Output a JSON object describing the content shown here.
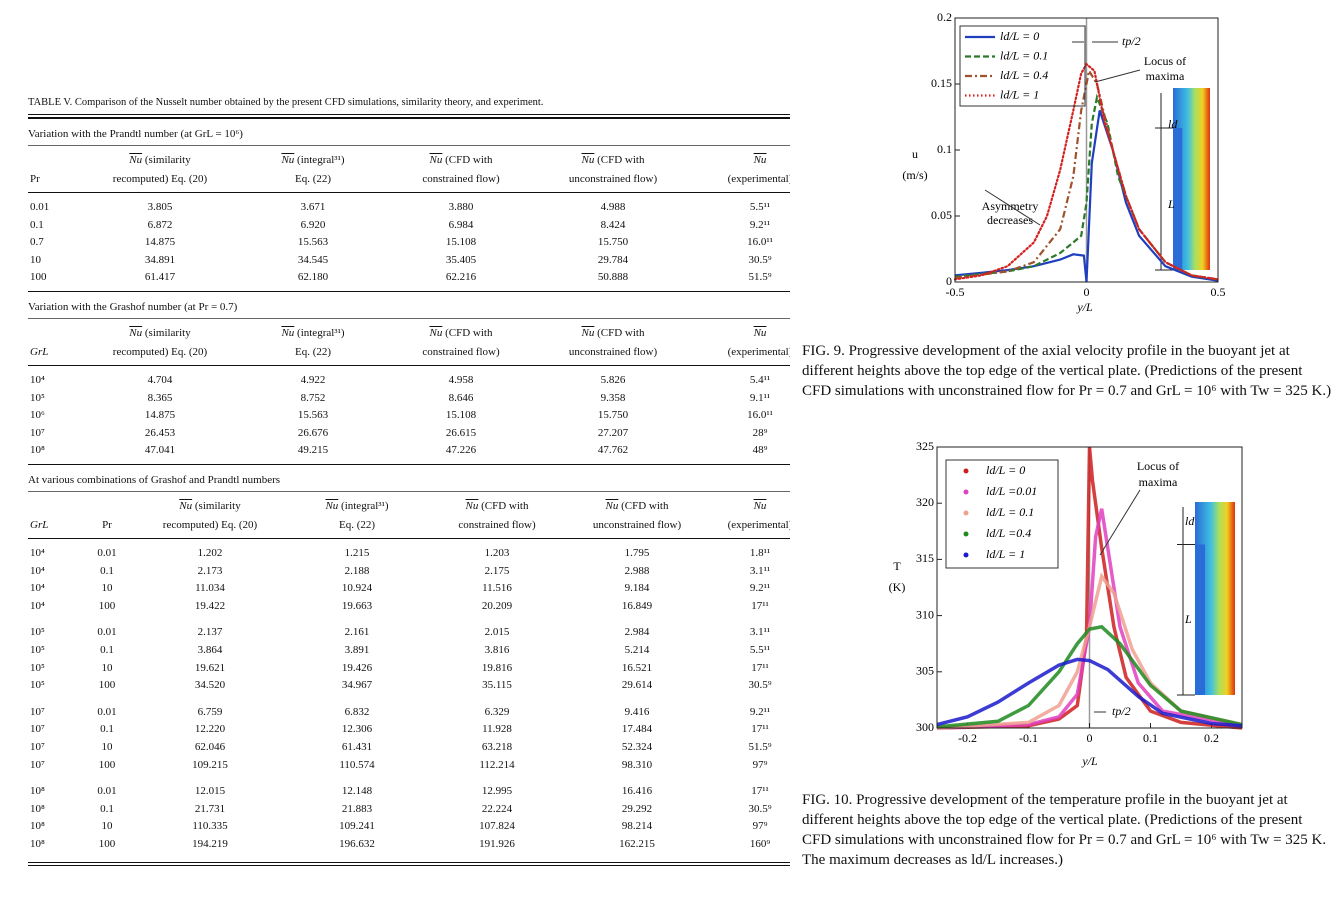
{
  "table": {
    "title": "TABLE V.  Comparison of the Nusselt number obtained by the present CFD simulations, similarity theory, and experiment.",
    "sections": [
      {
        "heading": "Variation with the Prandtl number (at GrL = 10⁶)",
        "columns": [
          {
            "line2": "Pr"
          },
          {
            "symbol": "Nu",
            "line1": " (similarity",
            "line2": "recomputed) Eq. (20)"
          },
          {
            "symbol": "Nu",
            "line1": " (integral³¹)",
            "line2": "Eq. (22)"
          },
          {
            "symbol": "Nu",
            "line1": " (CFD with",
            "line2": "constrained flow)"
          },
          {
            "symbol": "Nu",
            "line1": " (CFD with",
            "line2": "unconstrained flow)"
          },
          {
            "symbol": "Nu",
            "line2": "(experimental)"
          }
        ],
        "rows": [
          [
            "0.01",
            "3.805",
            "3.671",
            "3.880",
            "4.988",
            "5.5¹¹"
          ],
          [
            "0.1",
            "6.872",
            "6.920",
            "6.984",
            "8.424",
            "9.2¹¹"
          ],
          [
            "0.7",
            "14.875",
            "15.563",
            "15.108",
            "15.750",
            "16.0¹¹"
          ],
          [
            "10",
            "34.891",
            "34.545",
            "35.405",
            "29.784",
            "30.5⁹"
          ],
          [
            "100",
            "61.417",
            "62.180",
            "62.216",
            "50.888",
            "51.5⁹"
          ]
        ]
      },
      {
        "heading": "Variation with the Grashof number (at Pr = 0.7)",
        "columns": [
          {
            "line2": "GrL"
          },
          {
            "symbol": "Nu",
            "line1": " (similarity",
            "line2": "recomputed) Eq. (20)"
          },
          {
            "symbol": "Nu",
            "line1": " (integral³¹)",
            "line2": "Eq. (22)"
          },
          {
            "symbol": "Nu",
            "line1": " (CFD with",
            "line2": "constrained flow)"
          },
          {
            "symbol": "Nu",
            "line1": " (CFD with",
            "line2": "unconstrained flow)"
          },
          {
            "symbol": "Nu",
            "line2": "(experimental)"
          }
        ],
        "rows": [
          [
            "10⁴",
            "4.704",
            "4.922",
            "4.958",
            "5.826",
            "5.4¹¹"
          ],
          [
            "10⁵",
            "8.365",
            "8.752",
            "8.646",
            "9.358",
            "9.1¹¹"
          ],
          [
            "10⁶",
            "14.875",
            "15.563",
            "15.108",
            "15.750",
            "16.0¹¹"
          ],
          [
            "10⁷",
            "26.453",
            "26.676",
            "26.615",
            "27.207",
            "28⁹"
          ],
          [
            "10⁸",
            "47.041",
            "49.215",
            "47.226",
            "47.762",
            "48⁹"
          ]
        ]
      },
      {
        "heading": "At various combinations of Grashof and Prandtl numbers",
        "columns": [
          {
            "line2": "GrL"
          },
          {
            "line2": "Pr"
          },
          {
            "symbol": "Nu",
            "line1": " (similarity",
            "line2": "recomputed) Eq. (20)"
          },
          {
            "symbol": "Nu",
            "line1": " (integral³¹)",
            "line2": "Eq. (22)"
          },
          {
            "symbol": "Nu",
            "line1": " (CFD with",
            "line2": "constrained flow)"
          },
          {
            "symbol": "Nu",
            "line1": " (CFD with",
            "line2": "unconstrained flow)"
          },
          {
            "symbol": "Nu",
            "line2": "(experimental)"
          }
        ],
        "rows": [
          [
            "10⁴",
            "0.01",
            "1.202",
            "1.215",
            "1.203",
            "1.795",
            "1.8¹¹"
          ],
          [
            "10⁴",
            "0.1",
            "2.173",
            "2.188",
            "2.175",
            "2.988",
            "3.1¹¹"
          ],
          [
            "10⁴",
            "10",
            "11.034",
            "10.924",
            "11.516",
            "9.184",
            "9.2¹¹"
          ],
          [
            "10⁴",
            "100",
            "19.422",
            "19.663",
            "20.209",
            "16.849",
            "17¹¹"
          ],
          [
            "10⁵",
            "0.01",
            "2.137",
            "2.161",
            "2.015",
            "2.984",
            "3.1¹¹"
          ],
          [
            "10⁵",
            "0.1",
            "3.864",
            "3.891",
            "3.816",
            "5.214",
            "5.5¹¹"
          ],
          [
            "10⁵",
            "10",
            "19.621",
            "19.426",
            "19.816",
            "16.521",
            "17¹¹"
          ],
          [
            "10⁵",
            "100",
            "34.520",
            "34.967",
            "35.115",
            "29.614",
            "30.5⁹"
          ],
          [
            "10⁷",
            "0.01",
            "6.759",
            "6.832",
            "6.329",
            "9.416",
            "9.2¹¹"
          ],
          [
            "10⁷",
            "0.1",
            "12.220",
            "12.306",
            "11.928",
            "17.484",
            "17¹¹"
          ],
          [
            "10⁷",
            "10",
            "62.046",
            "61.431",
            "63.218",
            "52.324",
            "51.5⁹"
          ],
          [
            "10⁷",
            "100",
            "109.215",
            "110.574",
            "112.214",
            "98.310",
            "97⁹"
          ],
          [
            "10⁸",
            "0.01",
            "12.015",
            "12.148",
            "12.995",
            "16.416",
            "17¹¹"
          ],
          [
            "10⁸",
            "0.1",
            "21.731",
            "21.883",
            "22.224",
            "29.292",
            "30.5⁹"
          ],
          [
            "10⁸",
            "10",
            "110.335",
            "109.241",
            "107.824",
            "98.214",
            "97⁹"
          ],
          [
            "10⁸",
            "100",
            "194.219",
            "196.632",
            "191.926",
            "162.215",
            "160⁹"
          ]
        ]
      }
    ]
  },
  "chart_data": [
    {
      "type": "line",
      "xlabel": "y/L",
      "ylabel": [
        "u",
        "(m/s)"
      ],
      "xlim": [
        -0.5,
        0.5
      ],
      "ylim": [
        0,
        0.2
      ],
      "xticks": [
        -0.5,
        0,
        0.5
      ],
      "yticks": [
        0,
        0.05,
        0.1,
        0.15,
        0.2
      ],
      "annotations": [
        [
          "Locus of",
          "maxima"
        ],
        [
          "Asymmetry",
          "decreases"
        ],
        "tp/2",
        "ld",
        "L"
      ],
      "series": [
        {
          "name": "ld/L = 0",
          "color": "#1f3fbf",
          "style": "solid",
          "x": [
            -0.5,
            -0.4,
            -0.3,
            -0.2,
            -0.1,
            -0.05,
            -0.01,
            0,
            0.02,
            0.05,
            0.1,
            0.15,
            0.2,
            0.3,
            0.4,
            0.5
          ],
          "values": [
            0.005,
            0.007,
            0.009,
            0.012,
            0.017,
            0.021,
            0.02,
            0,
            0.09,
            0.13,
            0.1,
            0.06,
            0.035,
            0.012,
            0.004,
            0.001
          ]
        },
        {
          "name": "ld/L = 0.1",
          "color": "#2a7a2a",
          "style": "dashed",
          "x": [
            -0.5,
            -0.3,
            -0.2,
            -0.1,
            -0.05,
            -0.02,
            0,
            0.02,
            0.04,
            0.08,
            0.12,
            0.2,
            0.3,
            0.4,
            0.5
          ],
          "values": [
            0.004,
            0.008,
            0.012,
            0.022,
            0.03,
            0.035,
            0.06,
            0.12,
            0.14,
            0.12,
            0.08,
            0.04,
            0.015,
            0.005,
            0.002
          ]
        },
        {
          "name": "ld/L = 0.4",
          "color": "#a0522d",
          "style": "dashdot",
          "x": [
            -0.5,
            -0.3,
            -0.2,
            -0.1,
            -0.05,
            -0.02,
            0.01,
            0.04,
            0.1,
            0.15,
            0.2,
            0.3,
            0.4,
            0.5
          ],
          "values": [
            0.003,
            0.008,
            0.015,
            0.04,
            0.08,
            0.13,
            0.16,
            0.15,
            0.1,
            0.065,
            0.04,
            0.015,
            0.005,
            0.002
          ]
        },
        {
          "name": "ld/L = 1",
          "color": "#d62020",
          "style": "dotted",
          "x": [
            -0.5,
            -0.4,
            -0.3,
            -0.2,
            -0.15,
            -0.1,
            -0.05,
            -0.02,
            0,
            0.03,
            0.07,
            0.1,
            0.15,
            0.2,
            0.3,
            0.4,
            0.5
          ],
          "values": [
            0.002,
            0.005,
            0.012,
            0.03,
            0.05,
            0.085,
            0.13,
            0.158,
            0.165,
            0.16,
            0.12,
            0.1,
            0.065,
            0.04,
            0.015,
            0.005,
            0.002
          ]
        }
      ],
      "caption": "FIG. 9.  Progressive development of the axial velocity profile in the buoyant jet at different heights above the top edge of the vertical plate. (Predictions of the present CFD simulations with unconstrained flow for Pr = 0.7 and GrL = 10⁶ with Tw = 325 K.)"
    },
    {
      "type": "line",
      "xlabel": "y/L",
      "ylabel": [
        "T",
        "(K)"
      ],
      "xlim": [
        -0.25,
        0.25
      ],
      "ylim": [
        300,
        325
      ],
      "xticks": [
        -0.2,
        -0.1,
        0,
        0.1,
        0.2
      ],
      "yticks": [
        300,
        305,
        310,
        315,
        320,
        325
      ],
      "annotations": [
        [
          "Locus of",
          "maxima"
        ],
        "tp/2",
        "ld",
        "L"
      ],
      "series": [
        {
          "name": "ld/L = 0",
          "color": "#cc1f1f",
          "style": "dots",
          "x": [
            -0.25,
            -0.1,
            -0.05,
            -0.02,
            -0.005,
            0,
            0.005,
            0.02,
            0.04,
            0.06,
            0.1,
            0.15,
            0.25
          ],
          "values": [
            300,
            300.2,
            300.8,
            302,
            308,
            325,
            322,
            316,
            309,
            304.5,
            301.5,
            300.5,
            300
          ]
        },
        {
          "name": "ld/L =0.01",
          "color": "#e040c0",
          "style": "dots",
          "x": [
            -0.25,
            -0.1,
            -0.05,
            -0.02,
            0,
            0.01,
            0.02,
            0.03,
            0.05,
            0.08,
            0.12,
            0.25
          ],
          "values": [
            300,
            300.3,
            301,
            303,
            309,
            317,
            319.5,
            316,
            309,
            304,
            301.5,
            300.2
          ]
        },
        {
          "name": "ld/L = 0.1",
          "color": "#f0a090",
          "style": "dots",
          "x": [
            -0.25,
            -0.1,
            -0.05,
            -0.02,
            0,
            0.02,
            0.04,
            0.07,
            0.1,
            0.15,
            0.25
          ],
          "values": [
            300,
            300.5,
            302,
            305,
            309,
            313.5,
            312,
            307,
            304,
            301.5,
            300.3
          ]
        },
        {
          "name": "ld/L =0.4",
          "color": "#1f8a1f",
          "style": "dots",
          "x": [
            -0.25,
            -0.15,
            -0.1,
            -0.05,
            -0.02,
            0,
            0.02,
            0.05,
            0.1,
            0.15,
            0.25
          ],
          "values": [
            300.1,
            300.6,
            302,
            305,
            307.5,
            308.8,
            309,
            307.5,
            303.8,
            301.5,
            300.3
          ]
        },
        {
          "name": "ld/L = 1",
          "color": "#1a1acc",
          "style": "dots",
          "x": [
            -0.25,
            -0.2,
            -0.15,
            -0.1,
            -0.05,
            -0.02,
            0,
            0.03,
            0.08,
            0.12,
            0.2,
            0.25
          ],
          "values": [
            300.3,
            301,
            302.3,
            304,
            305.6,
            306.1,
            306,
            305.2,
            302.8,
            301.3,
            300.4,
            300.2
          ]
        }
      ],
      "caption": "FIG. 10.  Progressive development of the temperature profile in the buoyant jet at different heights above the top edge of the vertical plate. (Predictions of the present CFD simulations with unconstrained flow for Pr = 0.7 and GrL = 10⁶ with Tw = 325 K. The maximum decreases as ld/L increases.)"
    }
  ]
}
